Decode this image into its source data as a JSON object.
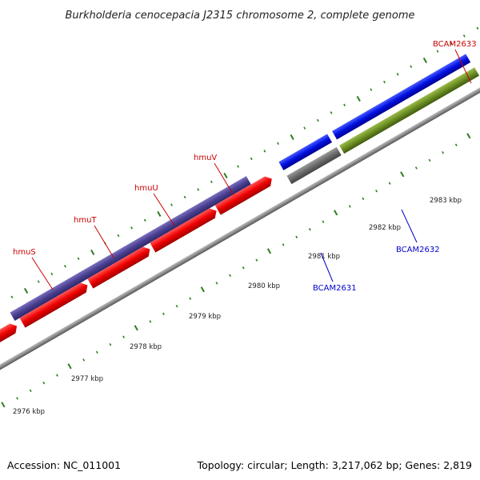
{
  "title": "Burkholderia cenocepacia J2315 chromosome 2, complete genome",
  "footer": {
    "accession": "Accession: NC_011001",
    "summary": "Topology: circular; Length: 3,217,062 bp; Genes: 2,819"
  },
  "colors": {
    "backbone": "#8c8c8c",
    "ticks": "#2e7d1e",
    "label_red": "#cc0000",
    "label_blue": "#0000cc"
  },
  "ticks": {
    "labels": [
      "2976 kbp",
      "2977 kbp",
      "2978 kbp",
      "2979 kbp",
      "2980 kbp",
      "2981 kbp",
      "2982 kbp",
      "2983 kbp"
    ]
  },
  "genes": [
    {
      "name": "hmuS",
      "label_color": "red"
    },
    {
      "name": "hmuT",
      "label_color": "red"
    },
    {
      "name": "hmuU",
      "label_color": "red"
    },
    {
      "name": "hmuV",
      "label_color": "red"
    },
    {
      "name": "BCAM2631",
      "label_color": "blue"
    },
    {
      "name": "BCAM2632",
      "label_color": "blue"
    },
    {
      "name": "BCAM2633",
      "label_color": "red"
    }
  ]
}
